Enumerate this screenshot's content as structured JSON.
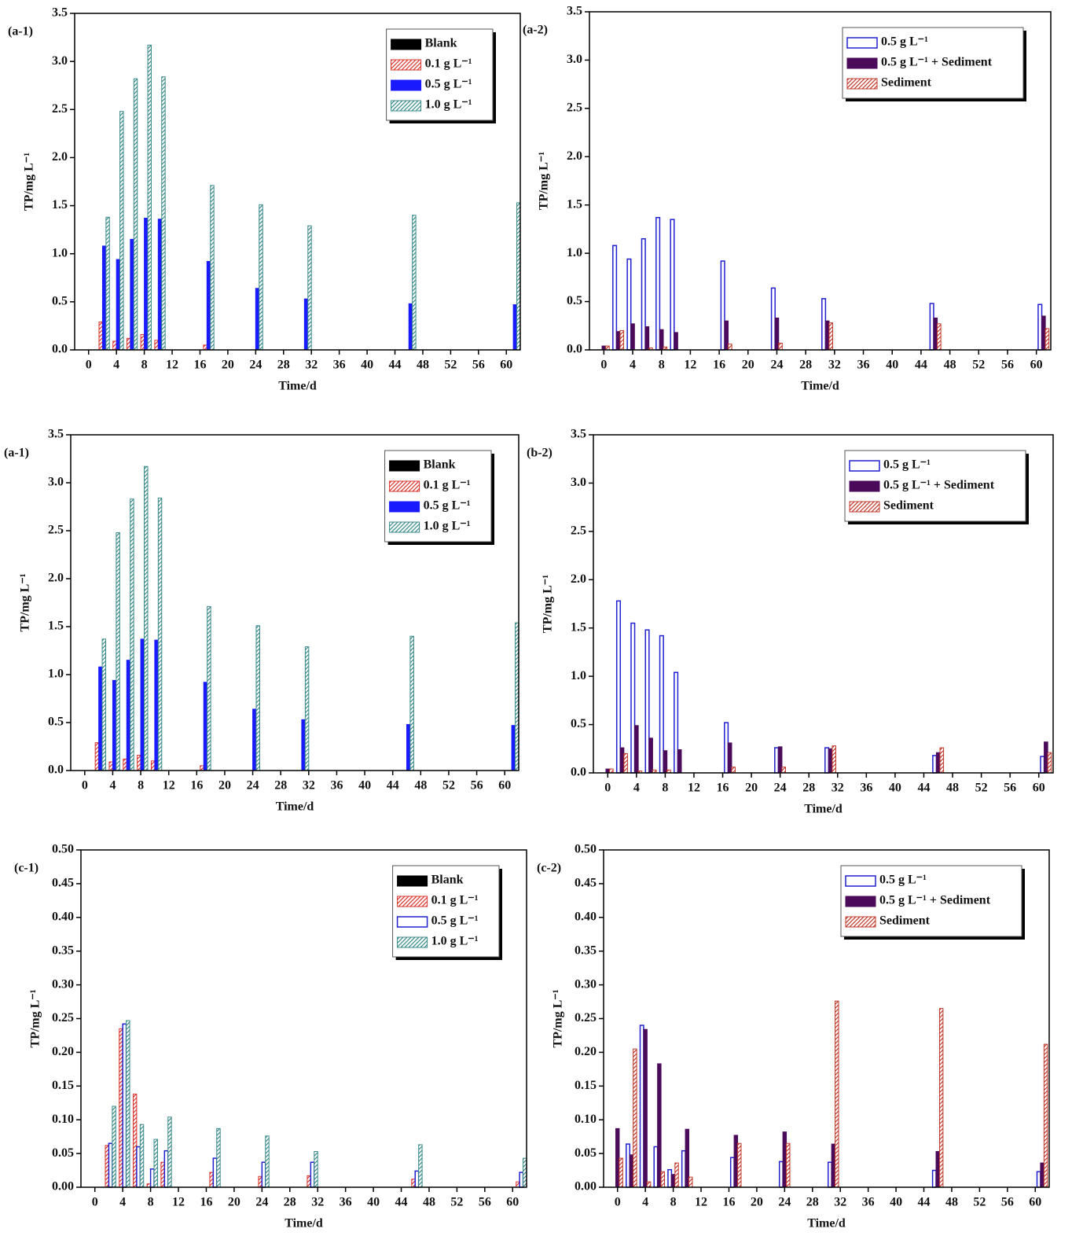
{
  "chart_data": [
    {
      "type": "bar",
      "label": "(a-1)",
      "xlabel": "Time/d",
      "ylabel": "TP/mg L⁻¹",
      "legend": "upper right",
      "x": [
        2,
        4,
        6,
        8,
        10,
        17,
        24,
        31,
        46,
        61
      ],
      "xlim": [
        -2,
        62
      ],
      "xticks": [
        0,
        4,
        8,
        12,
        16,
        20,
        24,
        28,
        32,
        36,
        40,
        44,
        48,
        52,
        56,
        60
      ],
      "ylim": [
        0,
        3.5
      ],
      "yticks": [
        {
          "value": 0,
          "label": "0.0"
        },
        0.5,
        {
          "value": 1,
          "label": "1.0"
        },
        1.5,
        {
          "value": 2,
          "label": "2.0"
        },
        2.5,
        {
          "value": 3,
          "label": "3.0"
        },
        3.5
      ],
      "series": [
        {
          "name": "Blank",
          "color": "#000000",
          "pattern": "solid",
          "values": [
            null,
            null,
            null,
            null,
            null,
            null,
            null,
            null,
            null,
            null
          ]
        },
        {
          "name": "0.1 g L⁻¹",
          "color": "#d9342b",
          "pattern": "hatch",
          "values": [
            0.29,
            0.09,
            0.12,
            0.16,
            0.1,
            0.05,
            0,
            0,
            0,
            0
          ]
        },
        {
          "name": "0.5 g L⁻¹",
          "color": "#1a1aff",
          "pattern": "solid",
          "values": [
            1.08,
            0.94,
            1.15,
            1.37,
            1.36,
            0.92,
            0.64,
            0.53,
            0.48,
            0.47
          ]
        },
        {
          "name": "1.0 g L⁻¹",
          "color": "#3a8a8a",
          "pattern": "hatch",
          "values": [
            1.38,
            2.48,
            2.82,
            3.17,
            2.84,
            1.71,
            1.51,
            1.29,
            1.4,
            1.53
          ]
        }
      ]
    },
    {
      "type": "bar",
      "label": "(a-2)",
      "xlabel": "Time/d",
      "ylabel": "TP/mg L⁻¹",
      "legend": "upper right",
      "x": [
        0,
        2,
        4,
        6,
        8,
        10,
        17,
        24,
        31,
        46,
        61
      ],
      "xlim": [
        -2,
        62
      ],
      "xticks": [
        0,
        4,
        8,
        12,
        16,
        20,
        24,
        28,
        32,
        36,
        40,
        44,
        48,
        52,
        56,
        60
      ],
      "ylim": [
        0,
        3.5
      ],
      "yticks": [
        {
          "value": 0,
          "label": "0.0"
        },
        0.5,
        {
          "value": 1,
          "label": "1.0"
        },
        1.5,
        {
          "value": 2,
          "label": "2.0"
        },
        2.5,
        {
          "value": 3,
          "label": "3.0"
        },
        3.5
      ],
      "series": [
        {
          "name": "0.5 g L⁻¹",
          "color": "#2020d0",
          "pattern": "hollow",
          "values": [
            null,
            1.08,
            0.94,
            1.15,
            1.37,
            1.35,
            0.92,
            0.64,
            0.53,
            0.48,
            0.47
          ]
        },
        {
          "name": "0.5 g L⁻¹ + Sediment",
          "color": "#4b0a5a",
          "pattern": "solid",
          "values": [
            0.04,
            0.19,
            0.27,
            0.24,
            0.21,
            0.18,
            0.3,
            0.33,
            0.3,
            0.33,
            0.35
          ]
        },
        {
          "name": "Sediment",
          "color": "#c0392b",
          "pattern": "hatch",
          "values": [
            0.04,
            0.2,
            0,
            0.02,
            0.03,
            0,
            0.06,
            0.07,
            0.28,
            0.27,
            0.22
          ]
        }
      ]
    },
    {
      "type": "bar",
      "label": "(a-1)",
      "xlabel": "Time/d",
      "ylabel": "TP/mg L⁻¹",
      "legend": "upper right",
      "x": [
        2,
        4,
        6,
        8,
        10,
        17,
        24,
        31,
        46,
        61
      ],
      "xlim": [
        -2,
        62
      ],
      "xticks": [
        0,
        4,
        8,
        12,
        16,
        20,
        24,
        28,
        32,
        36,
        40,
        44,
        48,
        52,
        56,
        60
      ],
      "ylim": [
        0,
        3.5
      ],
      "yticks": [
        {
          "value": 0,
          "label": "0.0"
        },
        0.5,
        {
          "value": 1,
          "label": "1.0"
        },
        1.5,
        {
          "value": 2,
          "label": "2.0"
        },
        2.5,
        {
          "value": 3,
          "label": "3.0"
        },
        3.5
      ],
      "series": [
        {
          "name": "Blank",
          "color": "#000000",
          "pattern": "solid",
          "values": [
            null,
            null,
            null,
            null,
            null,
            null,
            null,
            null,
            null,
            null
          ]
        },
        {
          "name": "0.1 g L⁻¹",
          "color": "#d9342b",
          "pattern": "hatch",
          "values": [
            0.29,
            0.09,
            0.12,
            0.16,
            0.1,
            0.05,
            0,
            0,
            0,
            0
          ]
        },
        {
          "name": "0.5 g L⁻¹",
          "color": "#1a1aff",
          "pattern": "solid",
          "values": [
            1.08,
            0.94,
            1.15,
            1.37,
            1.36,
            0.92,
            0.64,
            0.53,
            0.48,
            0.47
          ]
        },
        {
          "name": "1.0 g L⁻¹",
          "color": "#3a8a8a",
          "pattern": "hatch",
          "values": [
            1.37,
            2.48,
            2.83,
            3.17,
            2.84,
            1.71,
            1.51,
            1.29,
            1.4,
            1.54
          ]
        }
      ]
    },
    {
      "type": "bar",
      "label": "(b-2)",
      "xlabel": "Time/d",
      "ylabel": "TP/mg L⁻¹",
      "legend": "upper right",
      "x": [
        0,
        2,
        4,
        6,
        8,
        10,
        17,
        24,
        31,
        46,
        61
      ],
      "xlim": [
        -2,
        62
      ],
      "xticks": [
        0,
        4,
        8,
        12,
        16,
        20,
        24,
        28,
        32,
        36,
        40,
        44,
        48,
        52,
        56,
        60
      ],
      "ylim": [
        0,
        3.5
      ],
      "yticks": [
        {
          "value": 0,
          "label": "0.0"
        },
        0.5,
        {
          "value": 1,
          "label": "1.0"
        },
        1.5,
        {
          "value": 2,
          "label": "2.0"
        },
        2.5,
        {
          "value": 3,
          "label": "3.0"
        },
        3.5
      ],
      "series": [
        {
          "name": "0.5 g L⁻¹",
          "color": "#2020d0",
          "pattern": "hollow",
          "values": [
            null,
            1.78,
            1.55,
            1.48,
            1.42,
            1.04,
            0.52,
            0.26,
            0.26,
            0.18,
            0.17
          ]
        },
        {
          "name": "0.5 g L⁻¹ + Sediment",
          "color": "#4b0a5a",
          "pattern": "solid",
          "values": [
            0.04,
            0.26,
            0.49,
            0.36,
            0.23,
            0.24,
            0.31,
            0.27,
            0.25,
            0.21,
            0.32
          ]
        },
        {
          "name": "Sediment",
          "color": "#c0392b",
          "pattern": "hatch",
          "values": [
            0.04,
            0.2,
            0.02,
            0.03,
            0.03,
            0,
            0.06,
            0.06,
            0.28,
            0.26,
            0.21
          ]
        }
      ]
    },
    {
      "type": "bar",
      "label": "(c-1)",
      "xlabel": "Time/d",
      "ylabel": "TP/mg L⁻¹",
      "legend": "upper right",
      "x": [
        2,
        4,
        6,
        8,
        10,
        17,
        24,
        31,
        46,
        61
      ],
      "xlim": [
        -2,
        62
      ],
      "xticks": [
        0,
        4,
        8,
        12,
        16,
        20,
        24,
        28,
        32,
        36,
        40,
        44,
        48,
        52,
        56,
        60
      ],
      "ylim": [
        0,
        0.5
      ],
      "yticks": [
        {
          "value": 0,
          "label": "0.00"
        },
        0.05,
        {
          "value": 0.1,
          "label": "0.10"
        },
        0.15,
        {
          "value": 0.2,
          "label": "0.20"
        },
        0.25,
        {
          "value": 0.3,
          "label": "0.30"
        },
        0.35,
        {
          "value": 0.4,
          "label": "0.40"
        },
        0.45,
        {
          "value": 0.5,
          "label": "0.50"
        }
      ],
      "series": [
        {
          "name": "Blank",
          "color": "#000000",
          "pattern": "solid",
          "values": [
            null,
            null,
            null,
            null,
            null,
            null,
            null,
            null,
            null,
            null
          ]
        },
        {
          "name": "0.1 g L⁻¹",
          "color": "#d9342b",
          "pattern": "hatch",
          "values": [
            0.062,
            0.235,
            0.138,
            0.005,
            0.037,
            0.022,
            0.016,
            0.017,
            0.012,
            0.008
          ]
        },
        {
          "name": "0.5 g L⁻¹",
          "color": "#2020d0",
          "pattern": "hollow",
          "values": [
            0.065,
            0.242,
            0.06,
            0.027,
            0.054,
            0.043,
            0.037,
            0.037,
            0.024,
            0.022
          ]
        },
        {
          "name": "1.0 g L⁻¹",
          "color": "#3a8a8a",
          "pattern": "hatch",
          "values": [
            0.12,
            0.247,
            0.093,
            0.071,
            0.104,
            0.087,
            0.076,
            0.053,
            0.063,
            0.043
          ]
        }
      ]
    },
    {
      "type": "bar",
      "label": "(c-2)",
      "xlabel": "Time/d",
      "ylabel": "TP/mg L⁻¹",
      "legend": "upper right",
      "x": [
        0,
        2,
        4,
        6,
        8,
        10,
        17,
        24,
        31,
        46,
        61
      ],
      "xlim": [
        -2,
        62
      ],
      "xticks": [
        0,
        4,
        8,
        12,
        16,
        20,
        24,
        28,
        32,
        36,
        40,
        44,
        48,
        52,
        56,
        60
      ],
      "ylim": [
        0,
        0.5
      ],
      "yticks": [
        {
          "value": 0,
          "label": "0.00"
        },
        0.05,
        {
          "value": 0.1,
          "label": "0.10"
        },
        0.15,
        {
          "value": 0.2,
          "label": "0.20"
        },
        0.25,
        {
          "value": 0.3,
          "label": "0.30"
        },
        0.35,
        {
          "value": 0.4,
          "label": "0.40"
        },
        0.45,
        {
          "value": 0.5,
          "label": "0.50"
        }
      ],
      "series": [
        {
          "name": "0.5 g L⁻¹",
          "color": "#2020d0",
          "pattern": "hollow",
          "values": [
            null,
            0.064,
            0.24,
            0.06,
            0.026,
            0.054,
            0.044,
            0.038,
            0.037,
            0.025,
            0.023
          ]
        },
        {
          "name": "0.5 g L⁻¹ + Sediment",
          "color": "#4b0a5a",
          "pattern": "solid",
          "values": [
            0.087,
            0.048,
            0.234,
            0.183,
            0.019,
            0.086,
            0.077,
            0.082,
            0.064,
            0.053,
            0.036
          ]
        },
        {
          "name": "Sediment",
          "color": "#c0392b",
          "pattern": "hatch",
          "values": [
            0.043,
            0.205,
            0.008,
            0.023,
            0.036,
            0.015,
            0.065,
            0.065,
            0.276,
            0.265,
            0.212
          ]
        }
      ]
    }
  ]
}
